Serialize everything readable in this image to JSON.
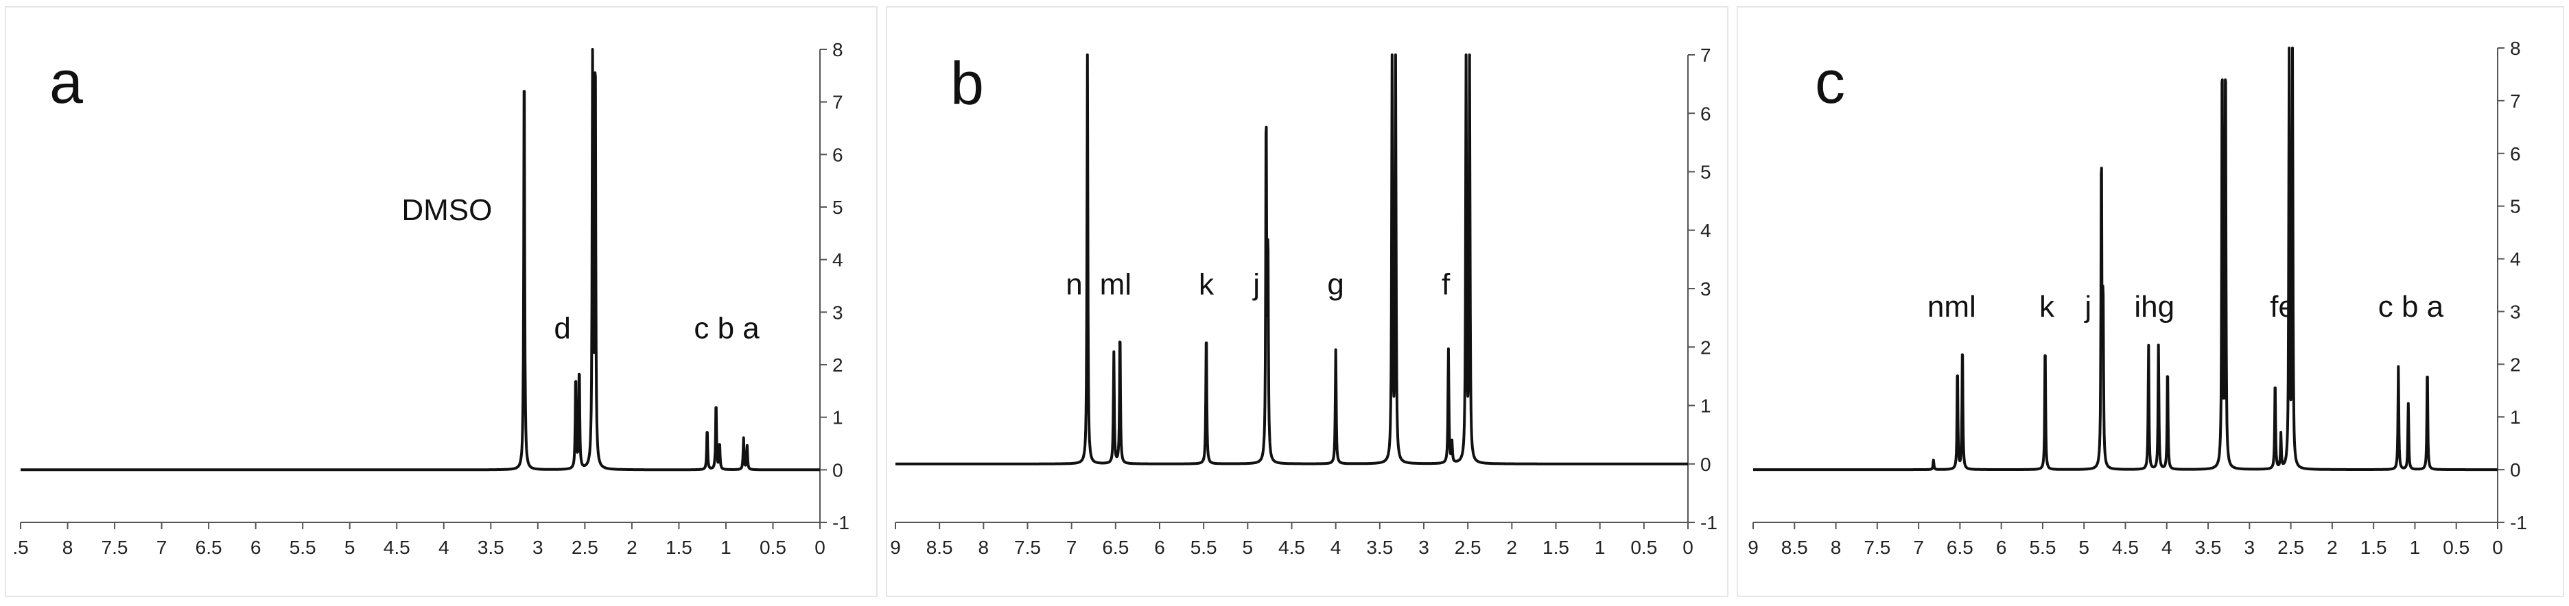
{
  "chart_data": [
    {
      "type": "line",
      "panel_label": "a",
      "title": "",
      "xlabel": "",
      "ylabel": "",
      "xlim": [
        9,
        0
      ],
      "ylim": [
        -1,
        8
      ],
      "x_ticks": [
        ".5",
        "8",
        "7.5",
        "7",
        "6.5",
        "6",
        "5.5",
        "5",
        "4.5",
        "4",
        "3.5",
        "3",
        "2.5",
        "2",
        "1.5",
        "1",
        "0.5",
        "0"
      ],
      "y_ticks": [
        "-1",
        "0",
        "1",
        "2",
        "3",
        "4",
        "5",
        "6",
        "7",
        "8"
      ],
      "peaks": [
        {
          "x": 3.33,
          "y": 8.0
        },
        {
          "x": 2.75,
          "y": 1.8
        },
        {
          "x": 2.71,
          "y": 1.95
        },
        {
          "x": 2.56,
          "y": 8.0
        },
        {
          "x": 2.53,
          "y": 8.0
        },
        {
          "x": 1.27,
          "y": 0.78
        },
        {
          "x": 1.17,
          "y": 1.3
        },
        {
          "x": 1.13,
          "y": 0.5
        },
        {
          "x": 0.86,
          "y": 0.6
        },
        {
          "x": 0.82,
          "y": 0.45
        }
      ],
      "annotations": [
        {
          "text": "DMSO",
          "x": 4.2,
          "y": 4.75
        },
        {
          "text": "d",
          "x": 2.9,
          "y": 2.5
        },
        {
          "text": "c b a",
          "x": 1.05,
          "y": 2.5
        }
      ]
    },
    {
      "type": "line",
      "panel_label": "b",
      "title": "",
      "xlabel": "",
      "ylabel": "",
      "xlim": [
        9,
        0
      ],
      "ylim": [
        -1,
        7
      ],
      "x_ticks": [
        "9",
        "8.5",
        "8",
        "7.5",
        "7",
        "6.5",
        "6",
        "5.5",
        "5",
        "4.5",
        "4",
        "3.5",
        "3",
        "2.5",
        "2",
        "1.5",
        "1",
        "0.5",
        "0"
      ],
      "y_ticks": [
        "-1",
        "0",
        "1",
        "2",
        "3",
        "4",
        "5",
        "6",
        "7"
      ],
      "peaks": [
        {
          "x": 6.82,
          "y": 7.0
        },
        {
          "x": 6.52,
          "y": 1.9
        },
        {
          "x": 6.45,
          "y": 2.3
        },
        {
          "x": 5.47,
          "y": 2.3
        },
        {
          "x": 4.79,
          "y": 6.0
        },
        {
          "x": 4.77,
          "y": 3.6
        },
        {
          "x": 4.0,
          "y": 1.95
        },
        {
          "x": 3.36,
          "y": 7.0
        },
        {
          "x": 3.32,
          "y": 7.0
        },
        {
          "x": 2.72,
          "y": 1.95
        },
        {
          "x": 2.68,
          "y": 0.35
        },
        {
          "x": 2.52,
          "y": 7.0
        },
        {
          "x": 2.48,
          "y": 7.0
        }
      ],
      "annotations": [
        {
          "text": "n",
          "x": 6.97,
          "y": 2.9
        },
        {
          "text": "ml",
          "x": 6.5,
          "y": 2.9
        },
        {
          "text": "k",
          "x": 5.47,
          "y": 2.9
        },
        {
          "text": "j",
          "x": 4.9,
          "y": 2.9
        },
        {
          "text": "g",
          "x": 4.0,
          "y": 2.9
        },
        {
          "text": "f",
          "x": 2.75,
          "y": 2.9
        }
      ]
    },
    {
      "type": "line",
      "panel_label": "c",
      "title": "",
      "xlabel": "",
      "ylabel": "",
      "xlim": [
        9,
        0
      ],
      "ylim": [
        -1,
        8
      ],
      "x_ticks": [
        "9",
        "8.5",
        "8",
        "7.5",
        "7",
        "6.5",
        "6",
        "5.5",
        "5",
        "4.5",
        "4",
        "3.5",
        "3",
        "2.5",
        "2",
        "1.5",
        "1",
        "0.5",
        "0"
      ],
      "y_ticks": [
        "-1",
        "0",
        "1",
        "2",
        "3",
        "4",
        "5",
        "6",
        "7",
        "8"
      ],
      "peaks": [
        {
          "x": 6.82,
          "y": 0.18
        },
        {
          "x": 6.53,
          "y": 1.95
        },
        {
          "x": 6.47,
          "y": 2.4
        },
        {
          "x": 5.47,
          "y": 2.4
        },
        {
          "x": 4.79,
          "y": 6.0
        },
        {
          "x": 4.77,
          "y": 3.2
        },
        {
          "x": 4.22,
          "y": 2.35
        },
        {
          "x": 4.1,
          "y": 2.35
        },
        {
          "x": 3.99,
          "y": 1.95
        },
        {
          "x": 3.33,
          "y": 8.0
        },
        {
          "x": 3.29,
          "y": 8.0
        },
        {
          "x": 2.69,
          "y": 1.7
        },
        {
          "x": 2.62,
          "y": 0.65
        },
        {
          "x": 2.52,
          "y": 8.0
        },
        {
          "x": 2.48,
          "y": 8.0
        },
        {
          "x": 1.2,
          "y": 1.95
        },
        {
          "x": 1.08,
          "y": 1.25
        },
        {
          "x": 0.85,
          "y": 1.95
        }
      ],
      "annotations": [
        {
          "text": "nml",
          "x": 6.6,
          "y": 2.9
        },
        {
          "text": "k",
          "x": 5.45,
          "y": 2.9
        },
        {
          "text": "j",
          "x": 4.95,
          "y": 2.9
        },
        {
          "text": "ihg",
          "x": 4.15,
          "y": 2.9
        },
        {
          "text": "fe",
          "x": 2.6,
          "y": 2.9
        },
        {
          "text": "c b a",
          "x": 1.05,
          "y": 2.9
        }
      ]
    }
  ]
}
